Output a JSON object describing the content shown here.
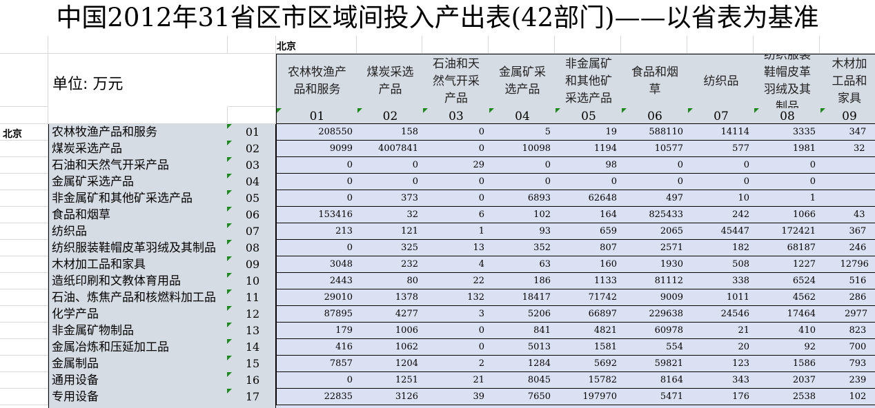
{
  "title": "中国2012年31省区市区域间投入产出表(42部门)——以省表为基准",
  "unit_label": "单位:  万元",
  "region": "北京",
  "columns": [
    {
      "name": "农林牧渔产品和服务",
      "code": "01"
    },
    {
      "name": "煤炭采选产品",
      "code": "02"
    },
    {
      "name": "石油和天然气开采产品",
      "code": "03"
    },
    {
      "name": "金属矿采选产品",
      "code": "04"
    },
    {
      "name": "非金属矿和其他矿采选产品",
      "code": "05"
    },
    {
      "name": "食品和烟草",
      "code": "06"
    },
    {
      "name": "纺织品",
      "code": "07"
    },
    {
      "name": "纺织服装鞋帽皮革羽绒及其制品",
      "code": "08"
    },
    {
      "name": "木材加工品和家具",
      "code": "09"
    }
  ],
  "rows": [
    {
      "name": "农林牧渔产品和服务",
      "code": "01",
      "values": [
        "208550",
        "158",
        "0",
        "5",
        "19",
        "588110",
        "14114",
        "3335",
        "347"
      ]
    },
    {
      "name": "煤炭采选产品",
      "code": "02",
      "values": [
        "9099",
        "4007841",
        "0",
        "10098",
        "1194",
        "10577",
        "577",
        "1981",
        "32"
      ]
    },
    {
      "name": "石油和天然气开采产品",
      "code": "03",
      "values": [
        "0",
        "0",
        "29",
        "0",
        "98",
        "0",
        "0",
        "0",
        ""
      ]
    },
    {
      "name": "金属矿采选产品",
      "code": "04",
      "values": [
        "0",
        "0",
        "0",
        "0",
        "0",
        "0",
        "0",
        "0",
        ""
      ]
    },
    {
      "name": "非金属矿和其他矿采选产品",
      "code": "05",
      "values": [
        "0",
        "373",
        "0",
        "6893",
        "62648",
        "497",
        "10",
        "1",
        ""
      ]
    },
    {
      "name": "食品和烟草",
      "code": "06",
      "values": [
        "153416",
        "32",
        "6",
        "102",
        "164",
        "825433",
        "242",
        "1066",
        "43"
      ]
    },
    {
      "name": "纺织品",
      "code": "07",
      "values": [
        "213",
        "121",
        "1",
        "93",
        "659",
        "2065",
        "45447",
        "172421",
        "367"
      ]
    },
    {
      "name": "纺织服装鞋帽皮革羽绒及其制品",
      "code": "08",
      "values": [
        "0",
        "325",
        "13",
        "352",
        "807",
        "2571",
        "182",
        "68187",
        "246"
      ]
    },
    {
      "name": "木材加工品和家具",
      "code": "09",
      "values": [
        "3048",
        "232",
        "4",
        "63",
        "160",
        "1930",
        "508",
        "1227",
        "12796"
      ]
    },
    {
      "name": "造纸印刷和文教体育用品",
      "code": "10",
      "values": [
        "2443",
        "80",
        "22",
        "186",
        "1133",
        "81112",
        "338",
        "6524",
        "516"
      ]
    },
    {
      "name": "石油、炼焦产品和核燃料加工品",
      "code": "11",
      "values": [
        "29010",
        "1378",
        "132",
        "18417",
        "71742",
        "9009",
        "1011",
        "4562",
        "286"
      ]
    },
    {
      "name": "化学产品",
      "code": "12",
      "values": [
        "87895",
        "4277",
        "3",
        "5206",
        "66897",
        "229638",
        "24546",
        "17464",
        "2977"
      ]
    },
    {
      "name": "非金属矿物制品",
      "code": "13",
      "values": [
        "179",
        "1006",
        "0",
        "841",
        "4821",
        "60978",
        "21",
        "410",
        "823"
      ]
    },
    {
      "name": "金属冶炼和压延加工品",
      "code": "14",
      "values": [
        "416",
        "1062",
        "0",
        "5013",
        "1581",
        "554",
        "20",
        "92",
        "700"
      ]
    },
    {
      "name": "金属制品",
      "code": "15",
      "values": [
        "7857",
        "1204",
        "2",
        "1284",
        "5692",
        "59821",
        "123",
        "1586",
        "793"
      ]
    },
    {
      "name": "通用设备",
      "code": "16",
      "values": [
        "0",
        "1251",
        "21",
        "8045",
        "15782",
        "8164",
        "343",
        "2037",
        "239"
      ]
    },
    {
      "name": "专用设备",
      "code": "17",
      "values": [
        "22835",
        "3126",
        "39",
        "7650",
        "197970",
        "5471",
        "176",
        "2538",
        "102"
      ]
    }
  ]
}
